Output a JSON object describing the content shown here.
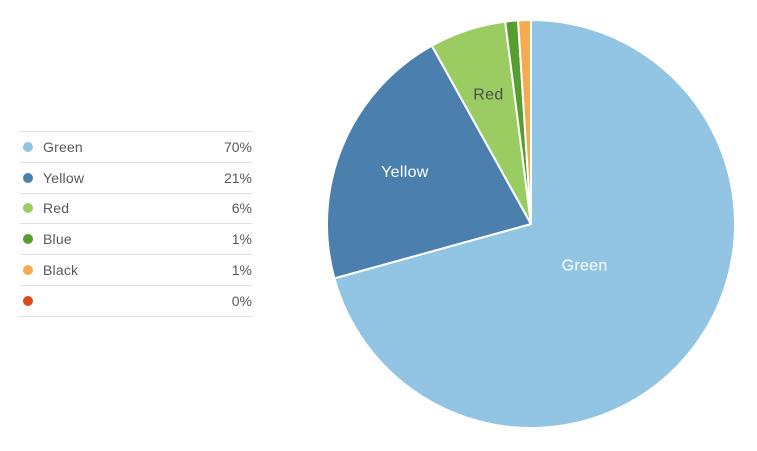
{
  "chart_data": {
    "type": "pie",
    "title": "",
    "legend_position": "left",
    "start_angle": "top",
    "direction": "clockwise",
    "slice_border_color": "#FFFFFF",
    "series": [
      {
        "label": "Green",
        "value": 70,
        "display": "70%",
        "color": "#92C4E4",
        "label_color": "#FFFFFF",
        "show_label": true
      },
      {
        "label": "Yellow",
        "value": 21,
        "display": "21%",
        "color": "#4A7FAE",
        "label_color": "#FFFFFF",
        "show_label": true
      },
      {
        "label": "Red",
        "value": 6,
        "display": "6%",
        "color": "#9ACC62",
        "label_color": "#4D4D4D",
        "show_label": true
      },
      {
        "label": "Blue",
        "value": 1,
        "display": "1%",
        "color": "#559E2F",
        "label_color": "#FFFFFF",
        "show_label": false
      },
      {
        "label": "Black",
        "value": 1,
        "display": "1%",
        "color": "#F7AA50",
        "label_color": "#FFFFFF",
        "show_label": false
      },
      {
        "label": "",
        "value": 0,
        "display": "0%",
        "color": "#DD481F",
        "label_color": "#FFFFFF",
        "show_label": false
      }
    ]
  },
  "styles": {
    "background": "#FFFFFF",
    "legend_text_color": "#58595B",
    "legend_divider_color": "#E2E2E2"
  }
}
